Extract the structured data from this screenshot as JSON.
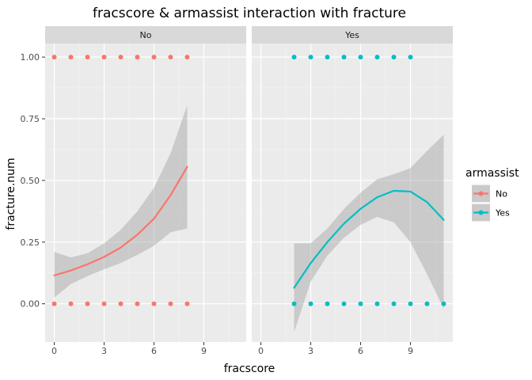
{
  "chart_data": {
    "type": "scatter",
    "title": "fracscore & armassist  interaction with fracture",
    "xlabel": "fracscore",
    "ylabel": "fracture.num",
    "xlim": [
      -0.55,
      11.55
    ],
    "ylim": [
      -0.155,
      1.055
    ],
    "x_ticks": [
      "0",
      "3",
      "6",
      "9"
    ],
    "y_ticks": [
      "0.00",
      "0.25",
      "0.50",
      "0.75",
      "1.00"
    ],
    "grid": true,
    "legend": {
      "title": "armassist",
      "position": "right",
      "entries": [
        {
          "label": "No",
          "color": "#F8766D"
        },
        {
          "label": "Yes",
          "color": "#00BFC4"
        }
      ]
    },
    "panels": [
      {
        "strip": "No",
        "color": "#F8766D",
        "points": [
          [
            0,
            1
          ],
          [
            1,
            1
          ],
          [
            2,
            1
          ],
          [
            3,
            1
          ],
          [
            4,
            1
          ],
          [
            5,
            1
          ],
          [
            6,
            1
          ],
          [
            7,
            1
          ],
          [
            8,
            1
          ],
          [
            0,
            0
          ],
          [
            1,
            0
          ],
          [
            2,
            0
          ],
          [
            3,
            0
          ],
          [
            4,
            0
          ],
          [
            5,
            0
          ],
          [
            6,
            0
          ],
          [
            7,
            0
          ],
          [
            8,
            0
          ]
        ],
        "fit": {
          "x": [
            0,
            1,
            2,
            3,
            4,
            5,
            6,
            7,
            8
          ],
          "y": [
            0.115,
            0.135,
            0.16,
            0.19,
            0.228,
            0.28,
            0.345,
            0.44,
            0.555
          ],
          "lower": [
            0.025,
            0.08,
            0.112,
            0.14,
            0.165,
            0.198,
            0.235,
            0.29,
            0.305
          ],
          "upper": [
            0.21,
            0.188,
            0.205,
            0.245,
            0.3,
            0.375,
            0.47,
            0.61,
            0.805
          ]
        }
      },
      {
        "strip": "Yes",
        "color": "#00BFC4",
        "points": [
          [
            2,
            1
          ],
          [
            3,
            1
          ],
          [
            4,
            1
          ],
          [
            5,
            1
          ],
          [
            6,
            1
          ],
          [
            7,
            1
          ],
          [
            8,
            1
          ],
          [
            9,
            1
          ],
          [
            2,
            0
          ],
          [
            3,
            0
          ],
          [
            4,
            0
          ],
          [
            5,
            0
          ],
          [
            6,
            0
          ],
          [
            7,
            0
          ],
          [
            8,
            0
          ],
          [
            9,
            0
          ],
          [
            10,
            0
          ],
          [
            11,
            0
          ]
        ],
        "fit": {
          "x": [
            2,
            3,
            4,
            5,
            6,
            7,
            8,
            9,
            10,
            11
          ],
          "y": [
            0.065,
            0.165,
            0.25,
            0.325,
            0.385,
            0.432,
            0.458,
            0.455,
            0.412,
            0.34
          ],
          "lower": [
            -0.115,
            0.09,
            0.195,
            0.268,
            0.32,
            0.352,
            0.33,
            0.25,
            0.12,
            -0.02
          ],
          "upper": [
            0.245,
            0.245,
            0.305,
            0.385,
            0.45,
            0.505,
            0.525,
            0.55,
            0.62,
            0.685
          ]
        }
      }
    ]
  }
}
